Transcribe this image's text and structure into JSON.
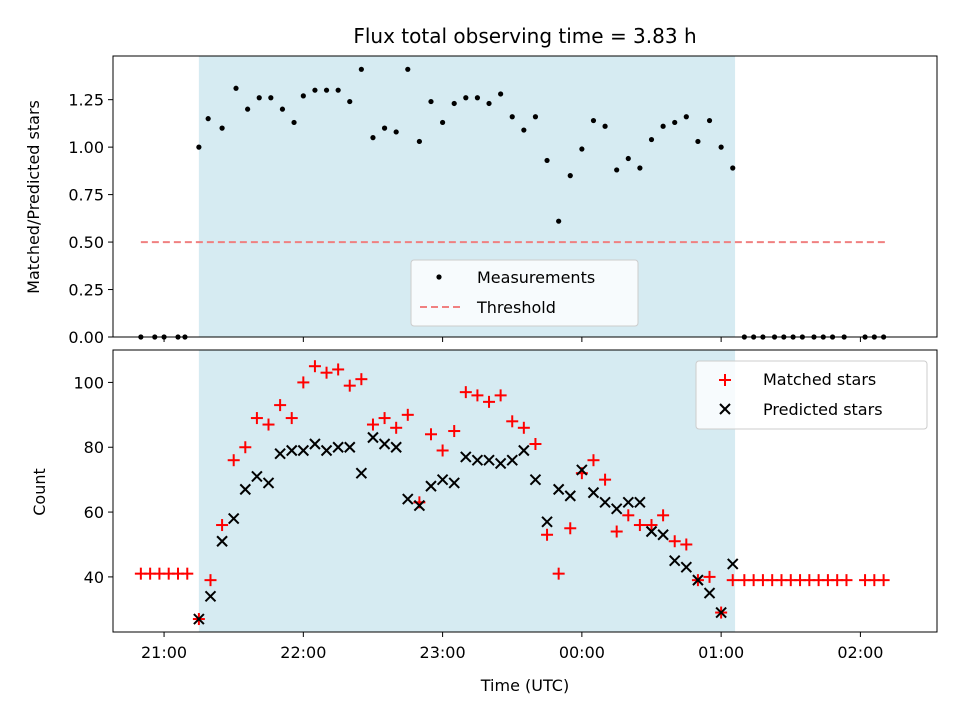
{
  "chart_data": [
    {
      "type": "scatter",
      "title": "Flux total observing time = 3.83 h",
      "xlabel": "",
      "ylabel": "Matched/Predicted stars",
      "ylim": [
        0.0,
        1.48
      ],
      "xlim": [
        "20:38",
        "02:33"
      ],
      "x_ticks": [
        "21:00",
        "22:00",
        "23:00",
        "00:00",
        "01:00",
        "02:00"
      ],
      "yticks": [
        "0.00",
        "0.25",
        "0.50",
        "0.75",
        "1.00",
        "1.25"
      ],
      "highlight_span": [
        "21:15",
        "01:06"
      ],
      "highlight_color": "#add8e6",
      "legend_position": "lower center",
      "series": [
        {
          "name": "Measurements",
          "marker": "dot",
          "color": "#000000",
          "points": [
            [
              "20:50",
              0.0
            ],
            [
              "20:56",
              0.0
            ],
            [
              "21:00",
              0.0
            ],
            [
              "21:06",
              0.0
            ],
            [
              "21:09",
              0.0
            ],
            [
              "21:15",
              1.0
            ],
            [
              "21:19",
              1.15
            ],
            [
              "21:25",
              1.1
            ],
            [
              "21:31",
              1.31
            ],
            [
              "21:36",
              1.2
            ],
            [
              "21:41",
              1.26
            ],
            [
              "21:46",
              1.26
            ],
            [
              "21:51",
              1.2
            ],
            [
              "21:56",
              1.13
            ],
            [
              "22:00",
              1.27
            ],
            [
              "22:05",
              1.3
            ],
            [
              "22:10",
              1.3
            ],
            [
              "22:15",
              1.3
            ],
            [
              "22:20",
              1.24
            ],
            [
              "22:25",
              1.41
            ],
            [
              "22:30",
              1.05
            ],
            [
              "22:35",
              1.1
            ],
            [
              "22:40",
              1.08
            ],
            [
              "22:45",
              1.41
            ],
            [
              "22:50",
              1.03
            ],
            [
              "22:55",
              1.24
            ],
            [
              "23:00",
              1.13
            ],
            [
              "23:05",
              1.23
            ],
            [
              "23:10",
              1.26
            ],
            [
              "23:15",
              1.26
            ],
            [
              "23:20",
              1.23
            ],
            [
              "23:25",
              1.28
            ],
            [
              "23:30",
              1.16
            ],
            [
              "23:35",
              1.09
            ],
            [
              "23:40",
              1.16
            ],
            [
              "23:45",
              0.93
            ],
            [
              "23:50",
              0.61
            ],
            [
              "23:55",
              0.85
            ],
            [
              "00:00",
              0.99
            ],
            [
              "00:05",
              1.14
            ],
            [
              "00:10",
              1.11
            ],
            [
              "00:15",
              0.88
            ],
            [
              "00:20",
              0.94
            ],
            [
              "00:25",
              0.89
            ],
            [
              "00:30",
              1.04
            ],
            [
              "00:35",
              1.11
            ],
            [
              "00:40",
              1.13
            ],
            [
              "00:45",
              1.16
            ],
            [
              "00:50",
              1.03
            ],
            [
              "00:55",
              1.14
            ],
            [
              "01:00",
              1.0
            ],
            [
              "01:05",
              0.89
            ],
            [
              "01:10",
              0.0
            ],
            [
              "01:14",
              0.0
            ],
            [
              "01:18",
              0.0
            ],
            [
              "01:23",
              0.0
            ],
            [
              "01:27",
              0.0
            ],
            [
              "01:31",
              0.0
            ],
            [
              "01:35",
              0.0
            ],
            [
              "01:40",
              0.0
            ],
            [
              "01:44",
              0.0
            ],
            [
              "01:48",
              0.0
            ],
            [
              "01:53",
              0.0
            ],
            [
              "02:02",
              0.0
            ],
            [
              "02:06",
              0.0
            ],
            [
              "02:10",
              0.0
            ]
          ]
        },
        {
          "name": "Threshold",
          "marker": "dashed-line",
          "color": "#f08080",
          "points": [
            [
              "20:50",
              0.5
            ],
            [
              "02:12",
              0.5
            ]
          ]
        }
      ]
    },
    {
      "type": "scatter",
      "title": "",
      "xlabel": "Time (UTC)",
      "ylabel": "Count",
      "ylim": [
        23,
        110
      ],
      "xlim": [
        "20:38",
        "02:33"
      ],
      "x_ticks": [
        "21:00",
        "22:00",
        "23:00",
        "00:00",
        "01:00",
        "02:00"
      ],
      "yticks": [
        "40",
        "60",
        "80",
        "100"
      ],
      "highlight_span": [
        "21:15",
        "01:06"
      ],
      "highlight_color": "#add8e6",
      "legend_position": "upper right",
      "series": [
        {
          "name": "Matched stars",
          "marker": "plus",
          "color": "#ff0000",
          "points": [
            [
              "20:50",
              41
            ],
            [
              "20:54",
              41
            ],
            [
              "20:58",
              41
            ],
            [
              "21:02",
              41
            ],
            [
              "21:06",
              41
            ],
            [
              "21:10",
              41
            ],
            [
              "21:15",
              27
            ],
            [
              "21:20",
              39
            ],
            [
              "21:25",
              56
            ],
            [
              "21:30",
              76
            ],
            [
              "21:35",
              80
            ],
            [
              "21:40",
              89
            ],
            [
              "21:45",
              87
            ],
            [
              "21:50",
              93
            ],
            [
              "21:55",
              89
            ],
            [
              "22:00",
              100
            ],
            [
              "22:05",
              105
            ],
            [
              "22:10",
              103
            ],
            [
              "22:15",
              104
            ],
            [
              "22:20",
              99
            ],
            [
              "22:25",
              101
            ],
            [
              "22:30",
              87
            ],
            [
              "22:35",
              89
            ],
            [
              "22:40",
              86
            ],
            [
              "22:45",
              90
            ],
            [
              "22:50",
              63
            ],
            [
              "22:55",
              84
            ],
            [
              "23:00",
              79
            ],
            [
              "23:05",
              85
            ],
            [
              "23:10",
              97
            ],
            [
              "23:15",
              96
            ],
            [
              "23:20",
              94
            ],
            [
              "23:25",
              96
            ],
            [
              "23:30",
              88
            ],
            [
              "23:35",
              86
            ],
            [
              "23:40",
              81
            ],
            [
              "23:45",
              53
            ],
            [
              "23:50",
              41
            ],
            [
              "23:55",
              55
            ],
            [
              "00:00",
              72
            ],
            [
              "00:05",
              76
            ],
            [
              "00:10",
              70
            ],
            [
              "00:15",
              54
            ],
            [
              "00:20",
              59
            ],
            [
              "00:25",
              56
            ],
            [
              "00:30",
              56
            ],
            [
              "00:35",
              59
            ],
            [
              "00:40",
              51
            ],
            [
              "00:45",
              50
            ],
            [
              "00:50",
              39
            ],
            [
              "00:55",
              40
            ],
            [
              "01:00",
              29
            ],
            [
              "01:05",
              39
            ],
            [
              "01:10",
              39
            ],
            [
              "01:14",
              39
            ],
            [
              "01:18",
              39
            ],
            [
              "01:22",
              39
            ],
            [
              "01:26",
              39
            ],
            [
              "01:30",
              39
            ],
            [
              "01:34",
              39
            ],
            [
              "01:38",
              39
            ],
            [
              "01:42",
              39
            ],
            [
              "01:46",
              39
            ],
            [
              "01:50",
              39
            ],
            [
              "01:54",
              39
            ],
            [
              "02:02",
              39
            ],
            [
              "02:06",
              39
            ],
            [
              "02:10",
              39
            ]
          ]
        },
        {
          "name": "Predicted stars",
          "marker": "x",
          "color": "#000000",
          "points": [
            [
              "21:15",
              27
            ],
            [
              "21:20",
              34
            ],
            [
              "21:25",
              51
            ],
            [
              "21:30",
              58
            ],
            [
              "21:35",
              67
            ],
            [
              "21:40",
              71
            ],
            [
              "21:45",
              69
            ],
            [
              "21:50",
              78
            ],
            [
              "21:55",
              79
            ],
            [
              "22:00",
              79
            ],
            [
              "22:05",
              81
            ],
            [
              "22:10",
              79
            ],
            [
              "22:15",
              80
            ],
            [
              "22:20",
              80
            ],
            [
              "22:25",
              72
            ],
            [
              "22:30",
              83
            ],
            [
              "22:35",
              81
            ],
            [
              "22:40",
              80
            ],
            [
              "22:45",
              64
            ],
            [
              "22:50",
              62
            ],
            [
              "22:55",
              68
            ],
            [
              "23:00",
              70
            ],
            [
              "23:05",
              69
            ],
            [
              "23:10",
              77
            ],
            [
              "23:15",
              76
            ],
            [
              "23:20",
              76
            ],
            [
              "23:25",
              75
            ],
            [
              "23:30",
              76
            ],
            [
              "23:35",
              79
            ],
            [
              "23:40",
              70
            ],
            [
              "23:45",
              57
            ],
            [
              "23:50",
              67
            ],
            [
              "23:55",
              65
            ],
            [
              "00:00",
              73
            ],
            [
              "00:05",
              66
            ],
            [
              "00:10",
              63
            ],
            [
              "00:15",
              61
            ],
            [
              "00:20",
              63
            ],
            [
              "00:25",
              63
            ],
            [
              "00:30",
              54
            ],
            [
              "00:35",
              53
            ],
            [
              "00:40",
              45
            ],
            [
              "00:45",
              43
            ],
            [
              "00:50",
              39
            ],
            [
              "00:55",
              35
            ],
            [
              "01:00",
              29
            ],
            [
              "01:05",
              44
            ]
          ]
        }
      ]
    }
  ]
}
